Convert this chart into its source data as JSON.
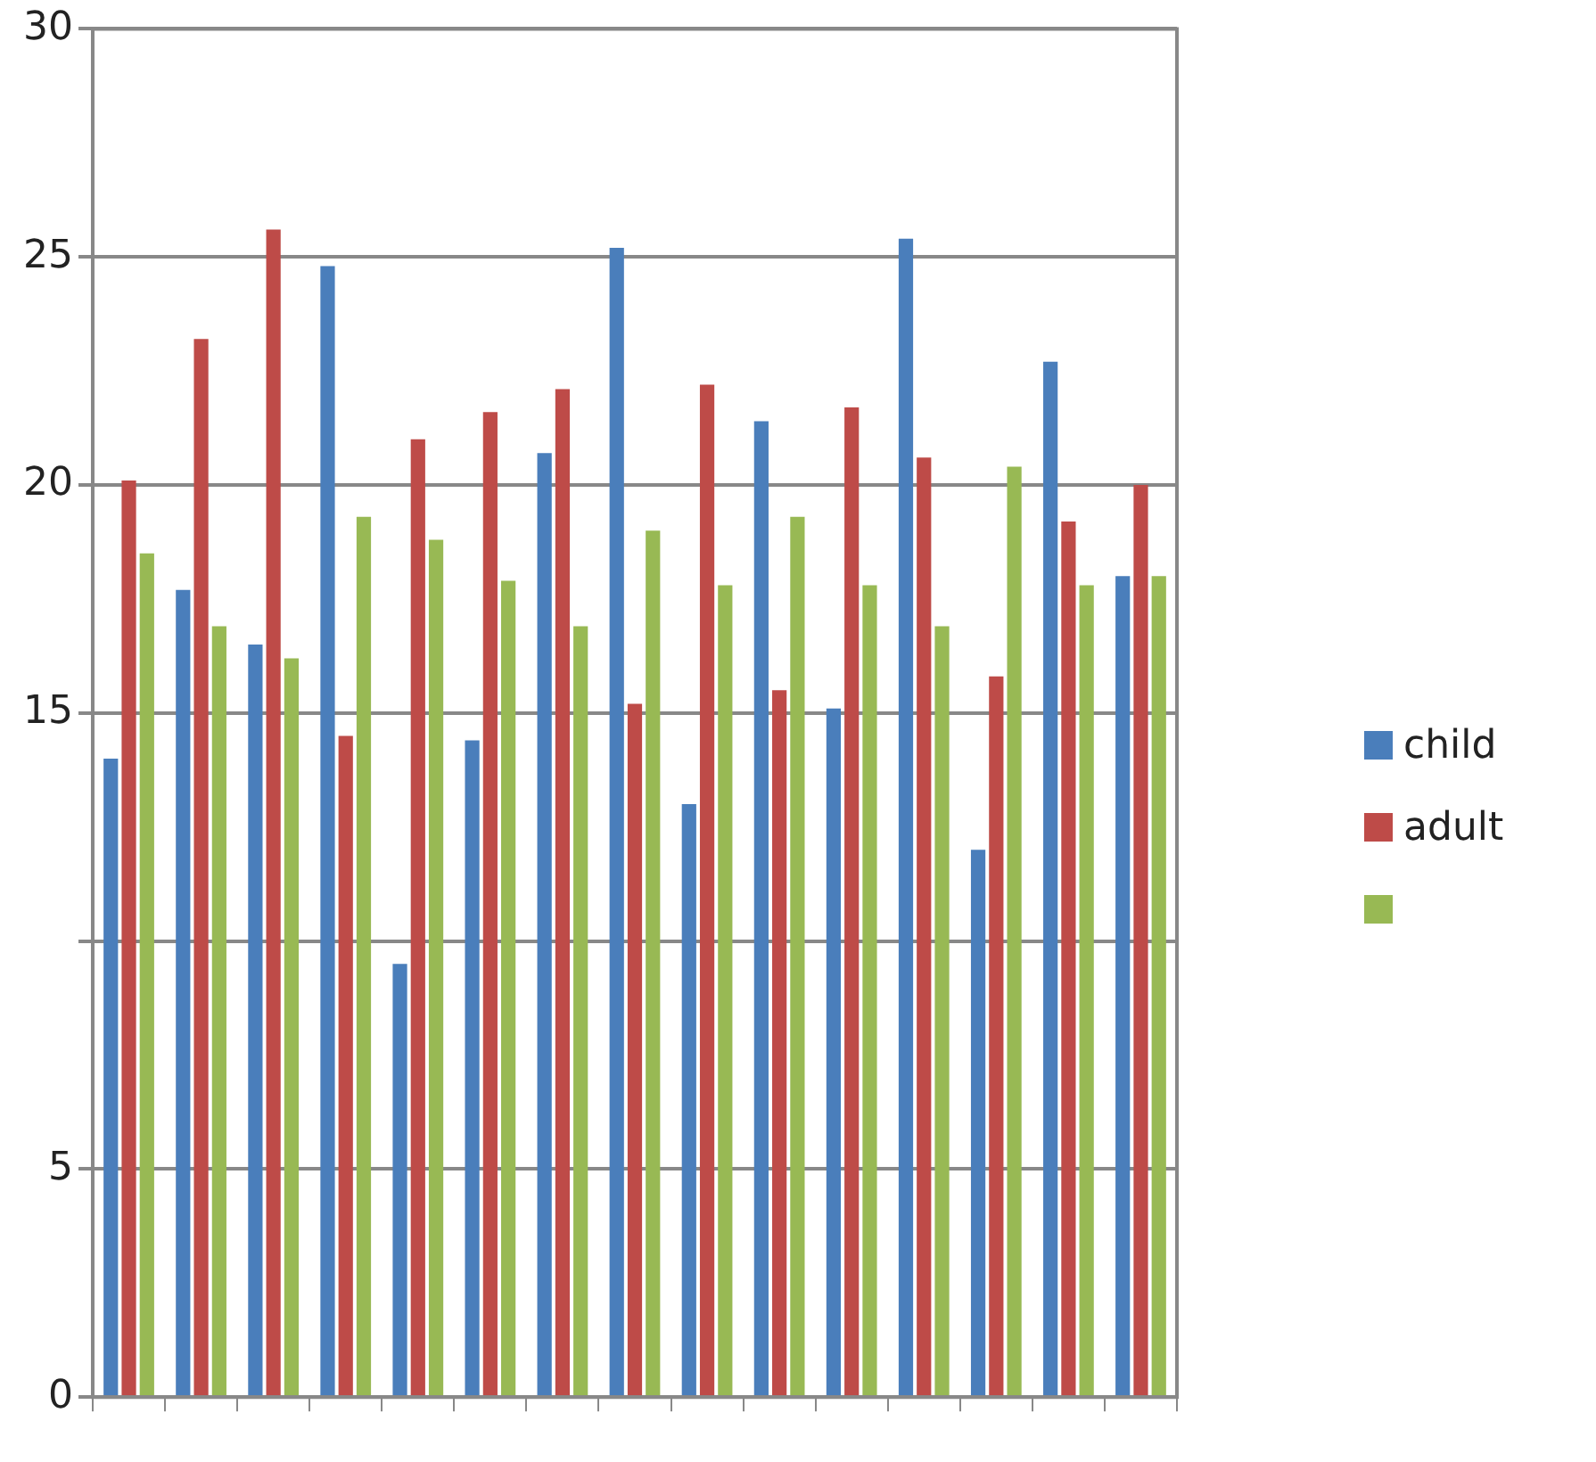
{
  "chart_data": {
    "type": "bar",
    "categories": [
      null,
      null,
      null,
      null,
      null,
      null,
      null,
      null,
      null,
      null,
      null,
      null,
      null,
      null,
      null
    ],
    "series": [
      {
        "name": "child",
        "color": "#4a7ebb",
        "values": [
          14.0,
          17.7,
          16.5,
          24.8,
          9.5,
          14.4,
          20.7,
          25.2,
          13.0,
          21.4,
          15.1,
          25.4,
          12.0,
          22.7,
          18.0
        ]
      },
      {
        "name": "adult",
        "color": "#be4b48",
        "values": [
          20.1,
          23.2,
          25.6,
          14.5,
          21.0,
          21.6,
          22.1,
          15.2,
          22.2,
          15.5,
          21.7,
          20.6,
          15.8,
          19.2,
          20.0
        ]
      },
      {
        "color": "#98b954",
        "values": [
          18.5,
          16.9,
          16.2,
          19.3,
          18.8,
          17.9,
          16.9,
          19.0,
          17.8,
          19.3,
          17.8,
          16.9,
          20.4,
          17.8,
          18.0
        ]
      }
    ],
    "ylim": [
      0,
      30
    ],
    "yticks": [
      0,
      5,
      {
        "value": 10,
        "label": null
      },
      15,
      20,
      25,
      30
    ],
    "grid": "y",
    "legend": "right"
  }
}
